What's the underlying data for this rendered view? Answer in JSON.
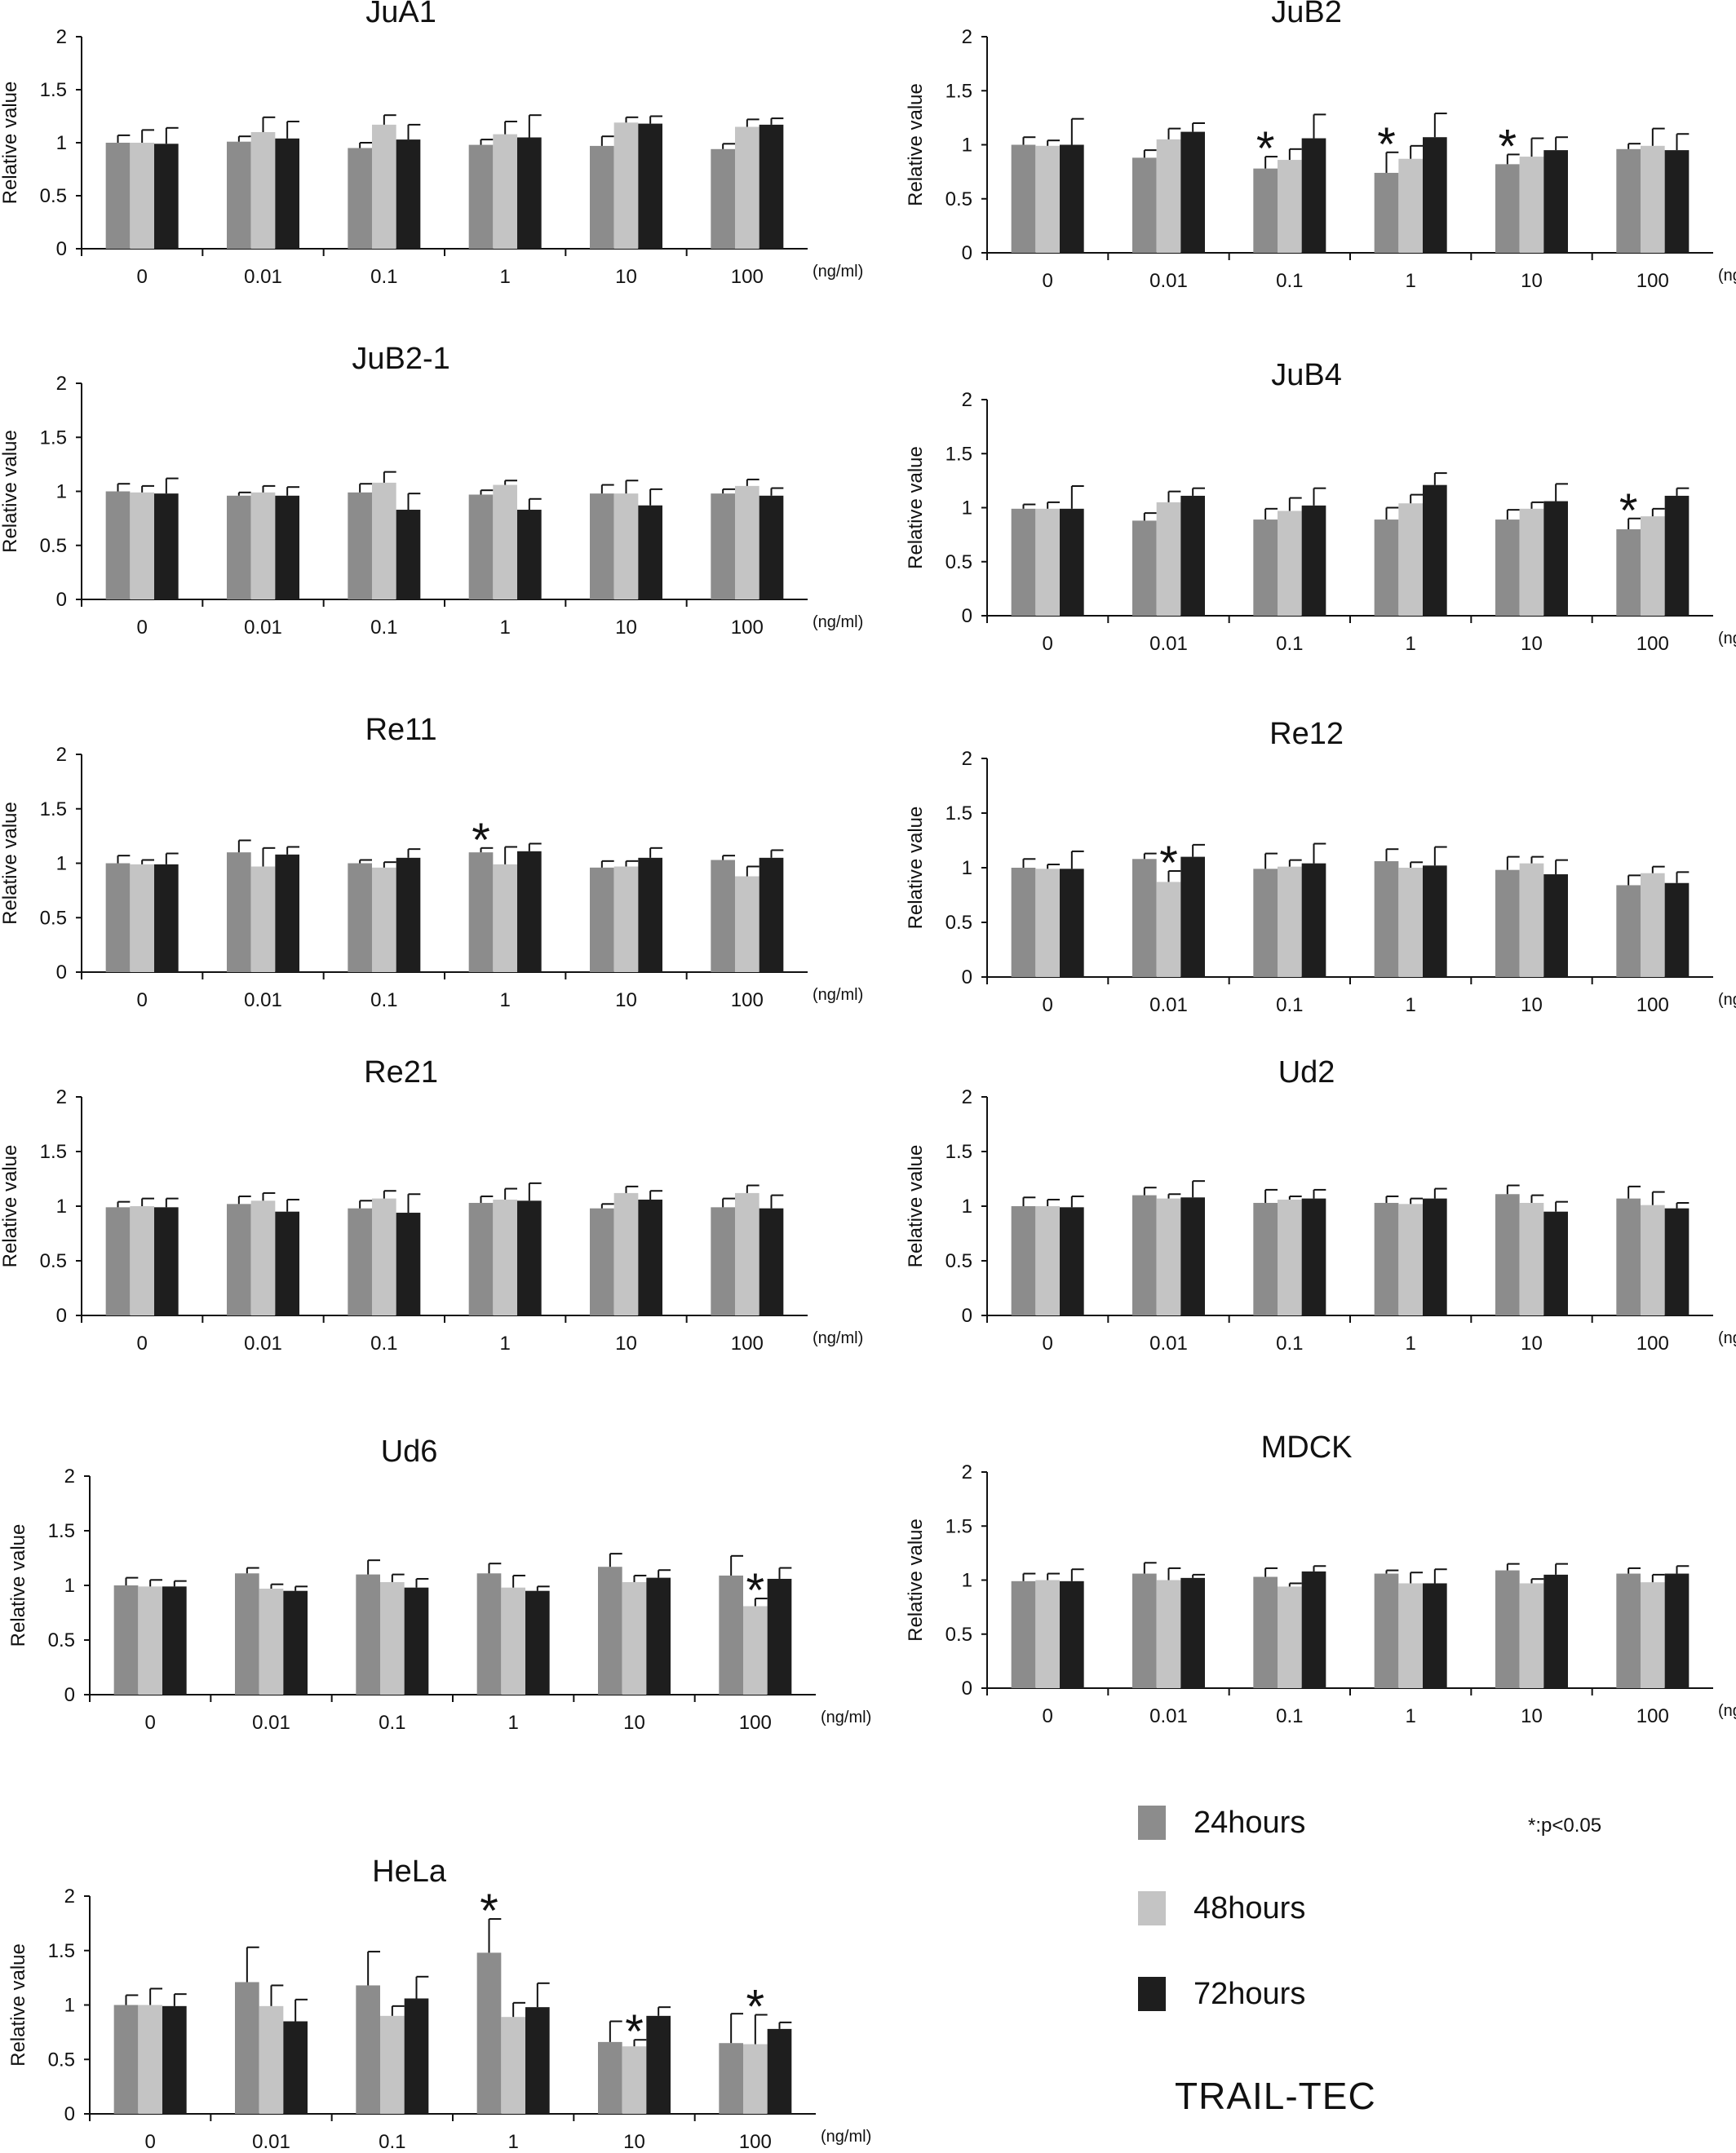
{
  "figure": {
    "footer_title": "TRAIL-TEC",
    "sig_note": "*:p<0.05",
    "unit_label": "(ng/ml)",
    "ylabel": "Relative value"
  },
  "legend": [
    {
      "label": "24hours",
      "color": "#8c8c8c"
    },
    {
      "label": "48hours",
      "color": "#c4c4c4"
    },
    {
      "label": "72hours",
      "color": "#1e1e1e"
    }
  ],
  "chart_data": [
    {
      "type": "bar",
      "title": "JuA1",
      "xlabel": "(ng/ml)",
      "ylabel": "Relative value",
      "categories": [
        "0",
        "0.01",
        "0.1",
        "1",
        "10",
        "100"
      ],
      "yticks": [
        "0",
        "0.5",
        "1",
        "1.5",
        "2"
      ],
      "ylim": [
        0,
        2
      ],
      "series": [
        {
          "name": "24hours",
          "values": [
            1.0,
            1.01,
            0.95,
            0.98,
            0.97,
            0.94
          ],
          "errors": [
            0.07,
            0.05,
            0.05,
            0.05,
            0.09,
            0.05
          ]
        },
        {
          "name": "48hours",
          "values": [
            1.0,
            1.1,
            1.17,
            1.08,
            1.19,
            1.15
          ],
          "errors": [
            0.12,
            0.14,
            0.09,
            0.12,
            0.05,
            0.07
          ]
        },
        {
          "name": "72hours",
          "values": [
            0.99,
            1.04,
            1.03,
            1.05,
            1.18,
            1.17
          ],
          "errors": [
            0.15,
            0.16,
            0.14,
            0.21,
            0.07,
            0.06
          ]
        }
      ],
      "significant": []
    },
    {
      "type": "bar",
      "title": "JuB2",
      "xlabel": "(ng/ml)",
      "ylabel": "Relative value",
      "categories": [
        "0",
        "0.01",
        "0.1",
        "1",
        "10",
        "100"
      ],
      "yticks": [
        "0",
        "0.5",
        "1",
        "1.5",
        "2"
      ],
      "ylim": [
        0,
        2
      ],
      "series": [
        {
          "name": "24hours",
          "values": [
            1.0,
            0.88,
            0.78,
            0.74,
            0.82,
            0.96
          ],
          "errors": [
            0.07,
            0.07,
            0.11,
            0.19,
            0.09,
            0.05
          ]
        },
        {
          "name": "48hours",
          "values": [
            0.99,
            1.05,
            0.86,
            0.87,
            0.89,
            0.99
          ],
          "errors": [
            0.05,
            0.1,
            0.1,
            0.12,
            0.17,
            0.16
          ]
        },
        {
          "name": "72hours",
          "values": [
            1.0,
            1.12,
            1.06,
            1.07,
            0.95,
            0.95
          ],
          "errors": [
            0.24,
            0.08,
            0.22,
            0.22,
            0.12,
            0.15
          ]
        }
      ],
      "significant": [
        {
          "group": 2,
          "series": 0
        },
        {
          "group": 3,
          "series": 0
        },
        {
          "group": 4,
          "series": 0
        }
      ]
    },
    {
      "type": "bar",
      "title": "JuB2-1",
      "xlabel": "(ng/ml)",
      "ylabel": "Relative value",
      "categories": [
        "0",
        "0.01",
        "0.1",
        "1",
        "10",
        "100"
      ],
      "yticks": [
        "0",
        "0.5",
        "1",
        "1.5",
        "2"
      ],
      "ylim": [
        0,
        2
      ],
      "series": [
        {
          "name": "24hours",
          "values": [
            1.0,
            0.96,
            0.99,
            0.97,
            0.98,
            0.98
          ],
          "errors": [
            0.07,
            0.03,
            0.08,
            0.04,
            0.08,
            0.04
          ]
        },
        {
          "name": "48hours",
          "values": [
            0.99,
            0.99,
            1.08,
            1.06,
            0.98,
            1.05
          ],
          "errors": [
            0.06,
            0.06,
            0.1,
            0.04,
            0.12,
            0.06
          ]
        },
        {
          "name": "72hours",
          "values": [
            0.98,
            0.96,
            0.83,
            0.83,
            0.87,
            0.96
          ],
          "errors": [
            0.14,
            0.08,
            0.15,
            0.1,
            0.15,
            0.07
          ]
        }
      ],
      "significant": []
    },
    {
      "type": "bar",
      "title": "JuB4",
      "xlabel": "(ng/ml)",
      "ylabel": "Relative value",
      "categories": [
        "0",
        "0.01",
        "0.1",
        "1",
        "10",
        "100"
      ],
      "yticks": [
        "0",
        "0.5",
        "1",
        "1.5",
        "2"
      ],
      "ylim": [
        0,
        2
      ],
      "series": [
        {
          "name": "24hours",
          "values": [
            0.99,
            0.88,
            0.89,
            0.89,
            0.89,
            0.8
          ],
          "errors": [
            0.04,
            0.07,
            0.1,
            0.11,
            0.09,
            0.1
          ]
        },
        {
          "name": "48hours",
          "values": [
            0.99,
            1.05,
            0.97,
            1.04,
            0.99,
            0.92
          ],
          "errors": [
            0.06,
            0.1,
            0.12,
            0.08,
            0.06,
            0.07
          ]
        },
        {
          "name": "72hours",
          "values": [
            0.99,
            1.11,
            1.02,
            1.21,
            1.06,
            1.11
          ],
          "errors": [
            0.21,
            0.07,
            0.16,
            0.11,
            0.16,
            0.07
          ]
        }
      ],
      "significant": [
        {
          "group": 5,
          "series": 0
        }
      ]
    },
    {
      "type": "bar",
      "title": "Re11",
      "xlabel": "(ng/ml)",
      "ylabel": "Relative value",
      "categories": [
        "0",
        "0.01",
        "0.1",
        "1",
        "10",
        "100"
      ],
      "yticks": [
        "0",
        "0.5",
        "1",
        "1.5",
        "2"
      ],
      "ylim": [
        0,
        2
      ],
      "series": [
        {
          "name": "24hours",
          "values": [
            1.0,
            1.1,
            1.0,
            1.1,
            0.96,
            1.03
          ],
          "errors": [
            0.07,
            0.11,
            0.03,
            0.04,
            0.06,
            0.04
          ]
        },
        {
          "name": "48hours",
          "values": [
            0.99,
            0.97,
            0.96,
            0.99,
            0.97,
            0.88
          ],
          "errors": [
            0.04,
            0.17,
            0.05,
            0.16,
            0.05,
            0.09
          ]
        },
        {
          "name": "72hours",
          "values": [
            0.99,
            1.08,
            1.05,
            1.11,
            1.05,
            1.05
          ],
          "errors": [
            0.1,
            0.07,
            0.08,
            0.07,
            0.09,
            0.07
          ]
        }
      ],
      "significant": [
        {
          "group": 3,
          "series": 0
        }
      ]
    },
    {
      "type": "bar",
      "title": "Re12",
      "xlabel": "(ng/ml)",
      "ylabel": "Relative value",
      "categories": [
        "0",
        "0.01",
        "0.1",
        "1",
        "10",
        "100"
      ],
      "yticks": [
        "0",
        "0.5",
        "1",
        "1.5",
        "2"
      ],
      "ylim": [
        0,
        2
      ],
      "series": [
        {
          "name": "24hours",
          "values": [
            1.0,
            1.08,
            0.99,
            1.06,
            0.98,
            0.84
          ],
          "errors": [
            0.08,
            0.05,
            0.14,
            0.11,
            0.12,
            0.09
          ]
        },
        {
          "name": "48hours",
          "values": [
            0.99,
            0.87,
            1.01,
            1.0,
            1.04,
            0.95
          ],
          "errors": [
            0.04,
            0.1,
            0.06,
            0.05,
            0.06,
            0.06
          ]
        },
        {
          "name": "72hours",
          "values": [
            0.99,
            1.1,
            1.04,
            1.02,
            0.94,
            0.86
          ],
          "errors": [
            0.16,
            0.11,
            0.18,
            0.17,
            0.13,
            0.1
          ]
        }
      ],
      "significant": [
        {
          "group": 1,
          "series": 1
        }
      ]
    },
    {
      "type": "bar",
      "title": "Re21",
      "xlabel": "(ng/ml)",
      "ylabel": "Relative value",
      "categories": [
        "0",
        "0.01",
        "0.1",
        "1",
        "10",
        "100"
      ],
      "yticks": [
        "0",
        "0.5",
        "1",
        "1.5",
        "2"
      ],
      "ylim": [
        0,
        2
      ],
      "series": [
        {
          "name": "24hours",
          "values": [
            0.99,
            1.02,
            0.98,
            1.03,
            0.98,
            0.99
          ],
          "errors": [
            0.05,
            0.07,
            0.07,
            0.06,
            0.04,
            0.08
          ]
        },
        {
          "name": "48hours",
          "values": [
            1.0,
            1.05,
            1.07,
            1.06,
            1.12,
            1.12
          ],
          "errors": [
            0.07,
            0.07,
            0.07,
            0.1,
            0.06,
            0.07
          ]
        },
        {
          "name": "72hours",
          "values": [
            0.99,
            0.95,
            0.94,
            1.05,
            1.06,
            0.98
          ],
          "errors": [
            0.08,
            0.11,
            0.17,
            0.16,
            0.08,
            0.12
          ]
        }
      ],
      "significant": []
    },
    {
      "type": "bar",
      "title": "Ud2",
      "xlabel": "(ng/ml)",
      "ylabel": "Relative value",
      "categories": [
        "0",
        "0.01",
        "0.1",
        "1",
        "10",
        "100"
      ],
      "yticks": [
        "0",
        "0.5",
        "1",
        "1.5",
        "2"
      ],
      "ylim": [
        0,
        2
      ],
      "series": [
        {
          "name": "24hours",
          "values": [
            1.0,
            1.1,
            1.03,
            1.03,
            1.11,
            1.07
          ],
          "errors": [
            0.08,
            0.07,
            0.12,
            0.06,
            0.08,
            0.11
          ]
        },
        {
          "name": "48hours",
          "values": [
            1.0,
            1.07,
            1.06,
            1.02,
            1.03,
            1.01
          ],
          "errors": [
            0.06,
            0.04,
            0.03,
            0.05,
            0.07,
            0.12
          ]
        },
        {
          "name": "72hours",
          "values": [
            0.99,
            1.08,
            1.07,
            1.07,
            0.95,
            0.98
          ],
          "errors": [
            0.1,
            0.15,
            0.08,
            0.09,
            0.09,
            0.05
          ]
        }
      ],
      "significant": []
    },
    {
      "type": "bar",
      "title": "Ud6",
      "xlabel": "(ng/ml)",
      "ylabel": "Relative value",
      "categories": [
        "0",
        "0.01",
        "0.1",
        "1",
        "10",
        "100"
      ],
      "yticks": [
        "0",
        "0.5",
        "1",
        "1.5",
        "2"
      ],
      "ylim": [
        0,
        2
      ],
      "series": [
        {
          "name": "24hours",
          "values": [
            1.0,
            1.11,
            1.1,
            1.11,
            1.17,
            1.09
          ],
          "errors": [
            0.07,
            0.05,
            0.13,
            0.09,
            0.12,
            0.18
          ]
        },
        {
          "name": "48hours",
          "values": [
            0.99,
            0.97,
            1.03,
            0.98,
            1.03,
            0.81
          ],
          "errors": [
            0.06,
            0.04,
            0.07,
            0.11,
            0.06,
            0.07
          ]
        },
        {
          "name": "72hours",
          "values": [
            0.99,
            0.95,
            0.98,
            0.95,
            1.07,
            1.06
          ],
          "errors": [
            0.05,
            0.04,
            0.08,
            0.04,
            0.07,
            0.1
          ]
        }
      ],
      "significant": [
        {
          "group": 5,
          "series": 1
        }
      ]
    },
    {
      "type": "bar",
      "title": "MDCK",
      "xlabel": "(ng/ml)",
      "ylabel": "Relative value",
      "categories": [
        "0",
        "0.01",
        "0.1",
        "1",
        "10",
        "100"
      ],
      "yticks": [
        "0",
        "0.5",
        "1",
        "1.5",
        "2"
      ],
      "ylim": [
        0,
        2
      ],
      "series": [
        {
          "name": "24hours",
          "values": [
            0.99,
            1.06,
            1.03,
            1.06,
            1.09,
            1.06
          ],
          "errors": [
            0.07,
            0.1,
            0.08,
            0.03,
            0.06,
            0.05
          ]
        },
        {
          "name": "48hours",
          "values": [
            1.0,
            1.0,
            0.94,
            0.97,
            0.97,
            0.98
          ],
          "errors": [
            0.06,
            0.11,
            0.03,
            0.1,
            0.04,
            0.07
          ]
        },
        {
          "name": "72hours",
          "values": [
            0.99,
            1.02,
            1.08,
            0.97,
            1.05,
            1.06
          ],
          "errors": [
            0.11,
            0.03,
            0.05,
            0.13,
            0.1,
            0.07
          ]
        }
      ],
      "significant": []
    },
    {
      "type": "bar",
      "title": "HeLa",
      "xlabel": "(ng/ml)",
      "ylabel": "Relative value",
      "categories": [
        "0",
        "0.01",
        "0.1",
        "1",
        "10",
        "100"
      ],
      "yticks": [
        "0",
        "0.5",
        "1",
        "1.5",
        "2"
      ],
      "ylim": [
        0,
        2
      ],
      "series": [
        {
          "name": "24hours",
          "values": [
            1.0,
            1.21,
            1.18,
            1.48,
            0.66,
            0.65
          ],
          "errors": [
            0.09,
            0.32,
            0.31,
            0.31,
            0.19,
            0.27
          ]
        },
        {
          "name": "48hours",
          "values": [
            1.0,
            0.99,
            0.9,
            0.89,
            0.62,
            0.64
          ],
          "errors": [
            0.15,
            0.19,
            0.09,
            0.13,
            0.06,
            0.27
          ]
        },
        {
          "name": "72hours",
          "values": [
            0.99,
            0.85,
            1.06,
            0.98,
            0.9,
            0.78
          ],
          "errors": [
            0.11,
            0.2,
            0.2,
            0.22,
            0.08,
            0.06
          ]
        }
      ],
      "significant": [
        {
          "group": 3,
          "series": 0
        },
        {
          "group": 4,
          "series": 1
        },
        {
          "group": 5,
          "series": 1
        }
      ]
    }
  ]
}
